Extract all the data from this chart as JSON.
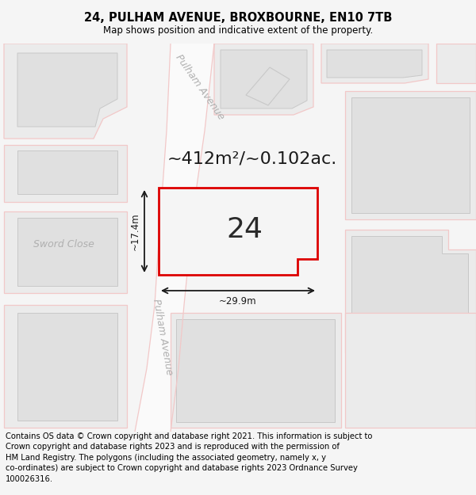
{
  "title": "24, PULHAM AVENUE, BROXBOURNE, EN10 7TB",
  "subtitle": "Map shows position and indicative extent of the property.",
  "footer": "Contains OS data © Crown copyright and database right 2021. This information is subject to\nCrown copyright and database rights 2023 and is reproduced with the permission of\nHM Land Registry. The polygons (including the associated geometry, namely x, y\nco-ordinates) are subject to Crown copyright and database rights 2023 Ordnance Survey\n100026316.",
  "area_label": "~412m²/~0.102ac.",
  "plot_number": "24",
  "width_label": "~29.9m",
  "height_label": "~17.4m",
  "road_label_upper": "Pulham Avenue",
  "road_label_lower": "Pulham Avenue",
  "street_label": "Sword Close",
  "bg_color": "#f5f5f5",
  "map_bg": "#ffffff",
  "plot_fill": "#f5f5f5",
  "plot_border": "#dd0000",
  "road_color": "#f2c8c8",
  "building_fill": "#e0e0e0",
  "building_fill2": "#ebebeb",
  "dim_color": "#1a1a1a",
  "text_color": "#1a1a1a",
  "road_text_color": "#b0b0b0",
  "title_fontsize": 10.5,
  "subtitle_fontsize": 8.5,
  "footer_fontsize": 7.2,
  "area_fontsize": 16,
  "plot_num_fontsize": 26,
  "road_fontsize": 9,
  "street_fontsize": 9,
  "dim_fontsize": 8.5
}
